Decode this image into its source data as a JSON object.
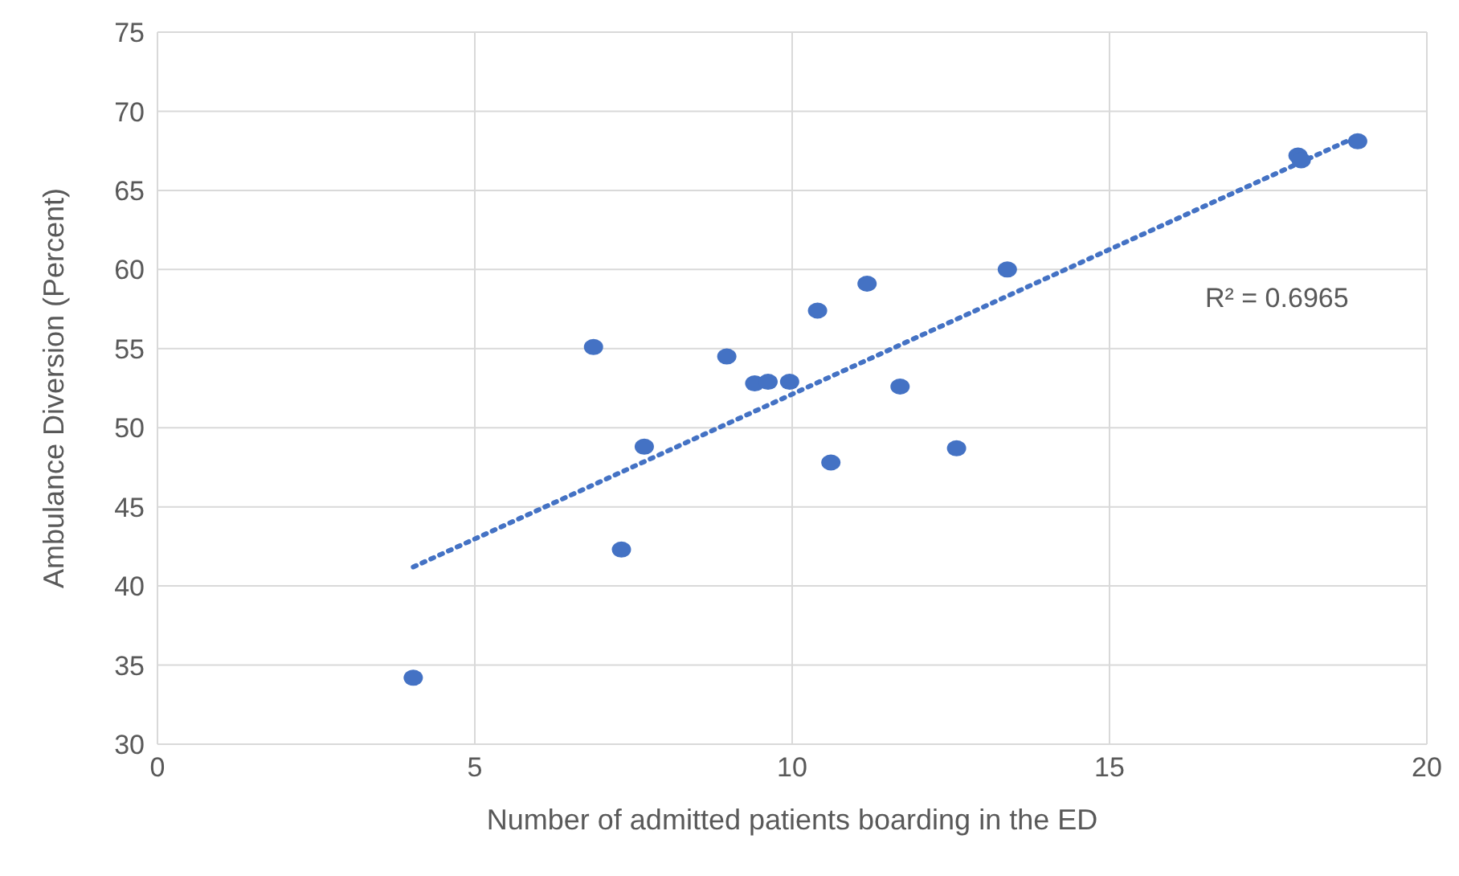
{
  "chart_data": {
    "type": "scatter",
    "xlabel": "Number of admitted patients boarding in the ED",
    "ylabel": "Ambulance Diversion (Percent)",
    "xlim": [
      0,
      20
    ],
    "xticks": [
      0,
      5,
      10,
      15,
      20
    ],
    "ylim": [
      30,
      75
    ],
    "yticks": [
      30,
      35,
      40,
      45,
      50,
      55,
      60,
      65,
      70,
      75
    ],
    "grid": true,
    "marker": "circle",
    "x": [
      4.03,
      6.87,
      7.31,
      7.67,
      8.97,
      9.41,
      9.62,
      9.96,
      10.4,
      10.61,
      11.18,
      11.7,
      12.59,
      13.39,
      17.97,
      18.02,
      18.91
    ],
    "series": [
      {
        "type": "scatter",
        "color": "#4472c4",
        "values": [
          34.2,
          55.1,
          42.3,
          48.8,
          54.5,
          52.8,
          52.9,
          52.9,
          57.4,
          47.8,
          59.1,
          52.6,
          48.7,
          60.0,
          67.2,
          66.9,
          68.1
        ]
      },
      {
        "type": "line",
        "color": "#4472c4",
        "x": [
          4.03,
          18.9
        ],
        "values": [
          41.2,
          68.4
        ],
        "line_style": "dotted",
        "marker": "none"
      }
    ],
    "annotations": [
      "R² = 0.6965"
    ]
  }
}
